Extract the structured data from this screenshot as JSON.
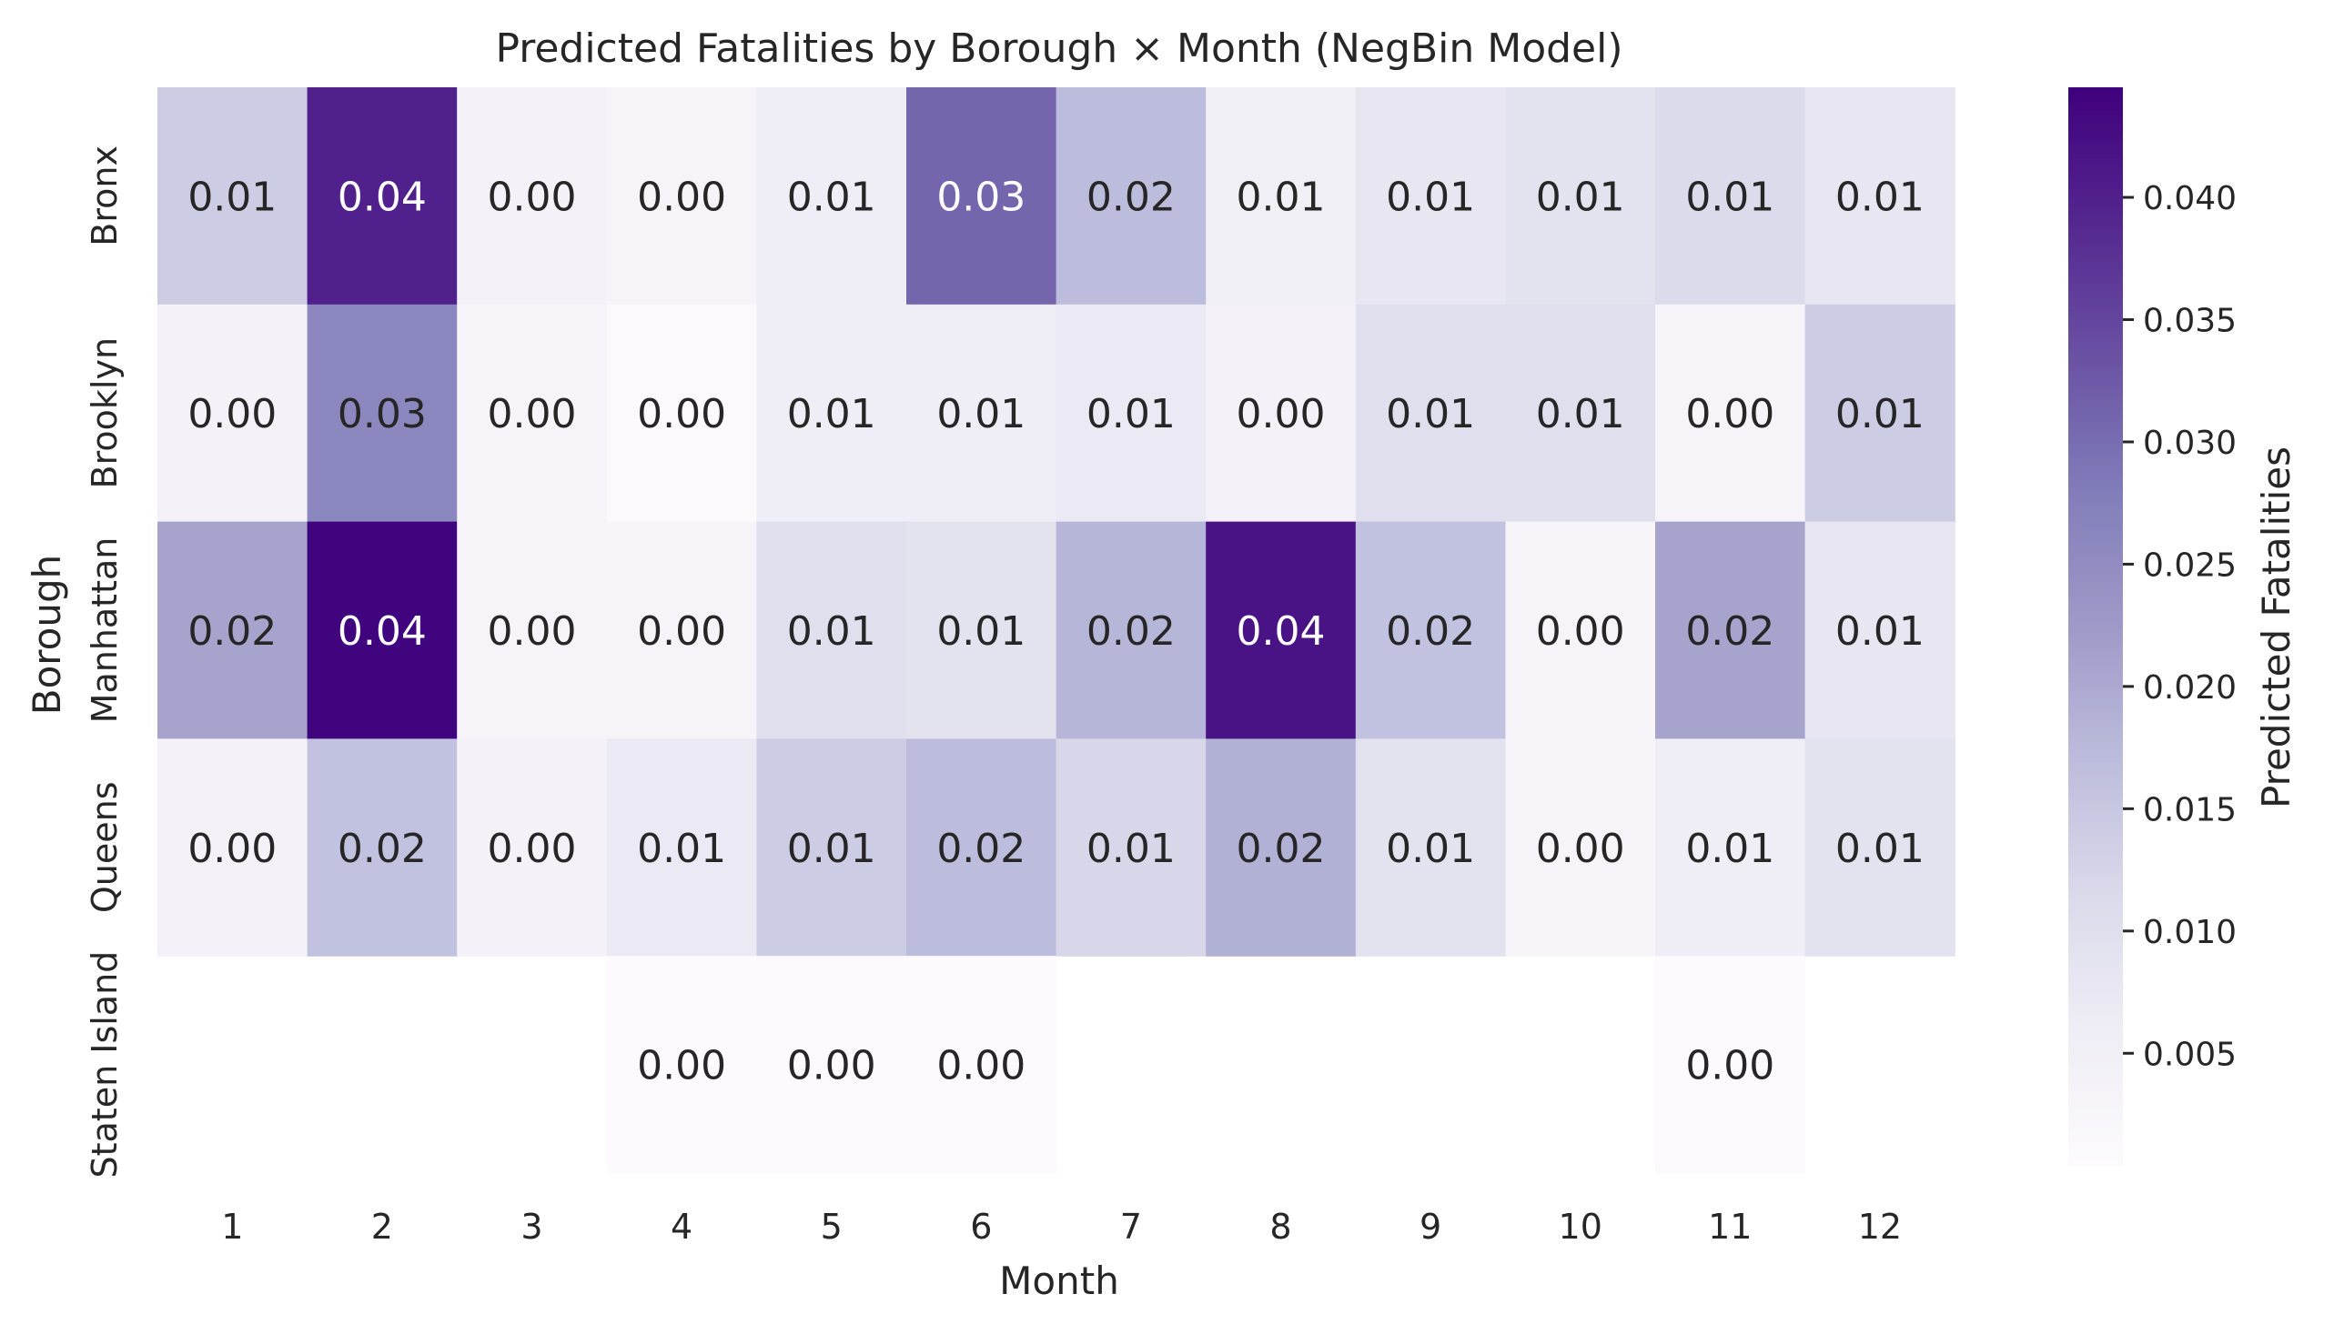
{
  "chart_data": {
    "type": "heatmap",
    "title": "Predicted Fatalities by Borough × Month (NegBin Model)",
    "xlabel": "Month",
    "ylabel": "Borough",
    "x_categories": [
      "1",
      "2",
      "3",
      "4",
      "5",
      "6",
      "7",
      "8",
      "9",
      "10",
      "11",
      "12"
    ],
    "y_categories": [
      "Bronx",
      "Brooklyn",
      "Manhattan",
      "Queens",
      "Staten Island"
    ],
    "values": [
      [
        0.014,
        0.04,
        0.004,
        0.003,
        0.006,
        0.031,
        0.017,
        0.005,
        0.008,
        0.009,
        0.011,
        0.008
      ],
      [
        0.004,
        0.026,
        0.003,
        0.001,
        0.006,
        0.006,
        0.007,
        0.004,
        0.01,
        0.01,
        0.003,
        0.014
      ],
      [
        0.021,
        0.044,
        0.003,
        0.003,
        0.01,
        0.009,
        0.018,
        0.042,
        0.016,
        0.003,
        0.021,
        0.008
      ],
      [
        0.004,
        0.016,
        0.004,
        0.007,
        0.014,
        0.017,
        0.012,
        0.019,
        0.009,
        0.003,
        0.006,
        0.009
      ],
      [
        null,
        null,
        null,
        0.0006,
        0.0006,
        0.0006,
        null,
        null,
        null,
        null,
        0.0006,
        null
      ]
    ],
    "value_labels": [
      [
        "0.01",
        "0.04",
        "0.00",
        "0.00",
        "0.01",
        "0.03",
        "0.02",
        "0.01",
        "0.01",
        "0.01",
        "0.01",
        "0.01"
      ],
      [
        "0.00",
        "0.03",
        "0.00",
        "0.00",
        "0.01",
        "0.01",
        "0.01",
        "0.00",
        "0.01",
        "0.01",
        "0.00",
        "0.01"
      ],
      [
        "0.02",
        "0.04",
        "0.00",
        "0.00",
        "0.01",
        "0.01",
        "0.02",
        "0.04",
        "0.02",
        "0.00",
        "0.02",
        "0.01"
      ],
      [
        "0.00",
        "0.02",
        "0.00",
        "0.01",
        "0.01",
        "0.02",
        "0.01",
        "0.02",
        "0.01",
        "0.00",
        "0.01",
        "0.01"
      ],
      [
        null,
        null,
        null,
        "0.00",
        "0.00",
        "0.00",
        null,
        null,
        null,
        null,
        "0.00",
        null
      ]
    ],
    "colorbar": {
      "label": "Predicted Fatalities",
      "range": [
        0.0004,
        0.0445
      ],
      "ticks": [
        0.005,
        0.01,
        0.015,
        0.02,
        0.025,
        0.03,
        0.035,
        0.04
      ],
      "tick_labels": [
        "0.005",
        "0.010",
        "0.015",
        "0.020",
        "0.025",
        "0.030",
        "0.035",
        "0.040"
      ],
      "colormap": "Purples",
      "colors": [
        "#fcfbfd",
        "#efedf5",
        "#dadaeb",
        "#bcbddc",
        "#9e9ac8",
        "#807dba",
        "#6a51a3",
        "#54278f",
        "#3f007d"
      ]
    },
    "grid": false,
    "legend": "colorbar-right"
  }
}
